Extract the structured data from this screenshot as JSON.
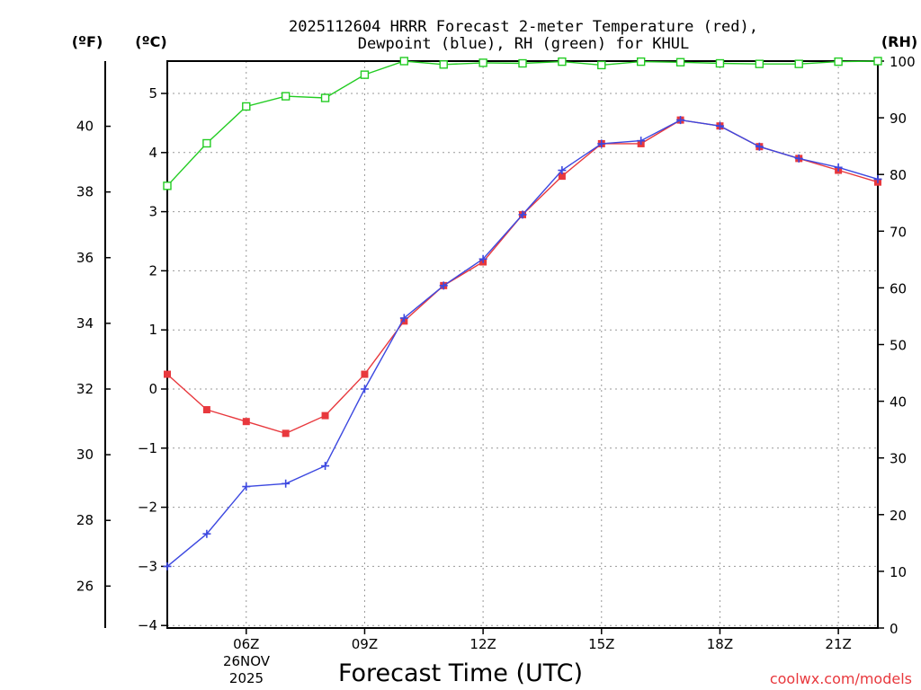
{
  "chart_data": {
    "type": "line",
    "title": "2025112604 HRRR Forecast 2-meter Temperature (red),",
    "subtitle": "Dewpoint (blue), RH (green) for KHUL",
    "xlabel": "Forecast Time (UTC)",
    "credit": "coolwx.com/models",
    "units": {
      "fahrenheit": "(ºF)",
      "celsius": "(ºC)",
      "rh": "(RH)"
    },
    "date_label": [
      "26NOV",
      "2025"
    ],
    "x_hours": [
      4,
      5,
      6,
      7,
      8,
      9,
      10,
      11,
      12,
      13,
      14,
      15,
      16,
      17,
      18,
      19,
      20,
      21,
      22
    ],
    "xlim": [
      4,
      22
    ],
    "x_ticks": [
      {
        "hour": 6,
        "label": "06Z"
      },
      {
        "hour": 9,
        "label": "09Z"
      },
      {
        "hour": 12,
        "label": "12Z"
      },
      {
        "hour": 15,
        "label": "15Z"
      },
      {
        "hour": 18,
        "label": "18Z"
      },
      {
        "hour": 21,
        "label": "21Z"
      }
    ],
    "ylim_celsius": [
      -4,
      5.5
    ],
    "ylim_rh": [
      0,
      100
    ],
    "celsius_ticks": [
      "−4",
      "−3",
      "−2",
      "−1",
      "0",
      "1",
      "2",
      "3",
      "4",
      "5"
    ],
    "fahrenheit_ticks": [
      "26",
      "28",
      "30",
      "32",
      "34",
      "36",
      "38",
      "40"
    ],
    "rh_ticks": [
      "0",
      "10",
      "20",
      "30",
      "40",
      "50",
      "60",
      "70",
      "80",
      "90",
      "100"
    ],
    "series": [
      {
        "name": "Temperature",
        "axis": "celsius",
        "color": "#e8383d",
        "marker": "square",
        "values": [
          0.25,
          -0.35,
          -0.55,
          -0.75,
          -0.45,
          0.25,
          1.15,
          1.75,
          2.15,
          2.95,
          3.6,
          4.15,
          4.15,
          4.55,
          4.45,
          4.1,
          3.9,
          3.7,
          3.5
        ]
      },
      {
        "name": "Dewpoint",
        "axis": "celsius",
        "color": "#3c48e0",
        "marker": "plus",
        "values": [
          -3.0,
          -2.45,
          -1.65,
          -1.6,
          -1.3,
          0.0,
          1.2,
          1.75,
          2.2,
          2.95,
          3.7,
          4.15,
          4.2,
          4.55,
          4.45,
          4.1,
          3.9,
          3.75,
          3.55
        ]
      },
      {
        "name": "RH",
        "axis": "rh",
        "color": "#22cc22",
        "marker": "open-square",
        "values": [
          78,
          85.5,
          92,
          93.8,
          93.5,
          97.6,
          100,
          99.4,
          99.7,
          99.6,
          99.9,
          99.3,
          99.9,
          99.8,
          99.6,
          99.5,
          99.5,
          99.9,
          100
        ]
      }
    ]
  }
}
